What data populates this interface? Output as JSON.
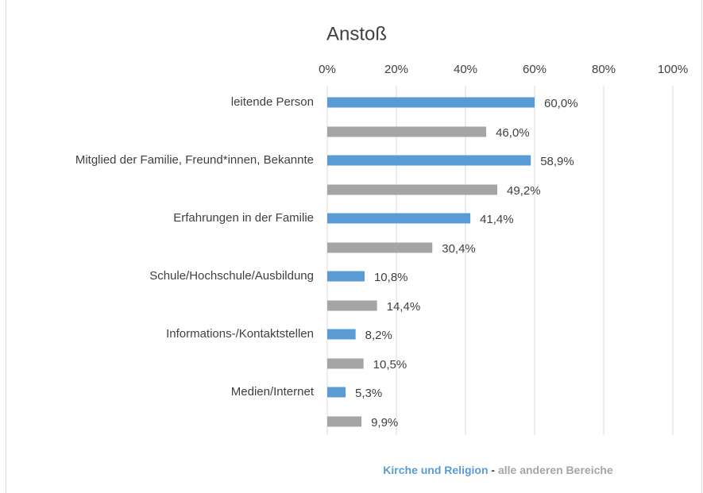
{
  "chart_data": {
    "type": "bar",
    "orientation": "horizontal",
    "title": "Anstoß",
    "categories": [
      "leitende Person",
      "Mitglied der Familie, Freund*innen, Bekannte",
      "Erfahrungen in der Familie",
      "Schule/Hochschule/Ausbildung",
      "Informations-/Kontaktstellen",
      "Medien/Internet"
    ],
    "series": [
      {
        "name": "Kirche und Religion",
        "color": "#5b9bd5",
        "values": [
          60.0,
          58.9,
          41.4,
          10.8,
          8.2,
          5.3
        ],
        "value_labels": [
          "60,0%",
          "58,9%",
          "41,4%",
          "10,8%",
          "8,2%",
          "5,3%"
        ]
      },
      {
        "name": "alle anderen Bereiche",
        "color": "#a5a5a5",
        "values": [
          46.0,
          49.2,
          30.4,
          14.4,
          10.5,
          9.9
        ],
        "value_labels": [
          "46,0%",
          "49,2%",
          "30,4%",
          "14,4%",
          "10,5%",
          "9,9%"
        ]
      }
    ],
    "legend_separator": "-",
    "xlim": [
      0,
      100
    ],
    "xticks": [
      {
        "value": 0,
        "label": "0%"
      },
      {
        "value": 20,
        "label": "20%"
      },
      {
        "value": 40,
        "label": "40%"
      },
      {
        "value": 60,
        "label": "60%"
      },
      {
        "value": 80,
        "label": "80%"
      },
      {
        "value": 100,
        "label": "100%"
      }
    ],
    "grid": true
  }
}
